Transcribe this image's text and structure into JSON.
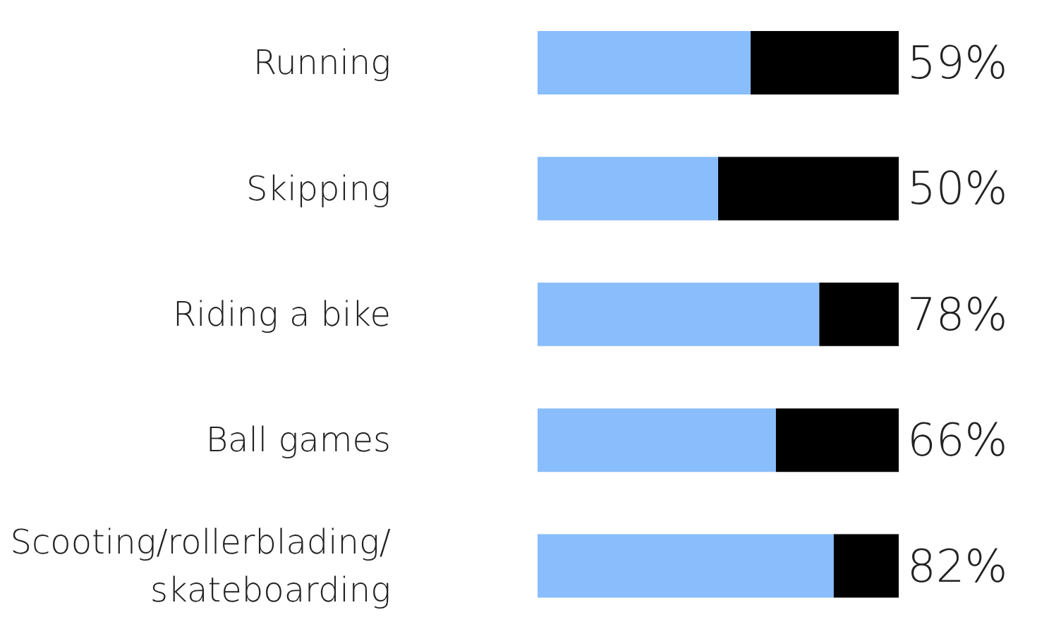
{
  "chart_data": {
    "type": "bar",
    "orientation": "horizontal",
    "stacked": true,
    "categories": [
      "Running",
      "Skipping",
      "Riding a bike",
      "Ball games",
      "Scooting/rollerblading/ skateboarding"
    ],
    "series": [
      {
        "color": "#89bdfc",
        "values": [
          59,
          50,
          78,
          66,
          82
        ],
        "value_labels": [
          "59%",
          "50%",
          "78%",
          "66%",
          "82%"
        ]
      },
      {
        "color": "#000000",
        "values": [
          41,
          50,
          22,
          34,
          18
        ]
      }
    ],
    "xlim": [
      0,
      100
    ],
    "tick_labels": "y",
    "legend": false,
    "grid": false
  }
}
